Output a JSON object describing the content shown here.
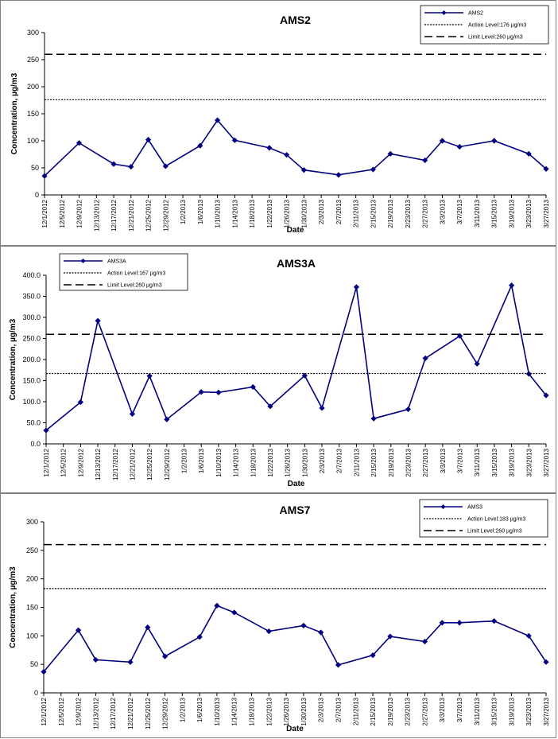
{
  "colors": {
    "series": "#000080",
    "reference": "#000000",
    "frame": "#808080"
  },
  "chart_data": [
    {
      "type": "line",
      "title": "AMS2",
      "xlabel": "Date",
      "ylabel": "Concentration, µg/m3",
      "ylim": [
        0,
        300
      ],
      "yticks": [
        "0",
        "50",
        "100",
        "150",
        "200",
        "250",
        "300"
      ],
      "grid": false,
      "legend_position": "top-right",
      "categories": [
        "12/1/2012",
        "12/5/2012",
        "12/9/2012",
        "12/13/2012",
        "12/17/2012",
        "12/21/2012",
        "12/25/2012",
        "12/29/2012",
        "1/2/2013",
        "1/6/2013",
        "1/10/2013",
        "1/14/2013",
        "1/18/2013",
        "1/22/2013",
        "1/26/2013",
        "1/30/2013",
        "2/3/2013",
        "2/7/2013",
        "2/11/2013",
        "2/15/2013",
        "2/19/2013",
        "2/23/2013",
        "2/27/2013",
        "3/3/2013",
        "3/7/2013",
        "3/11/2013",
        "3/15/2013",
        "3/19/2013",
        "3/23/2013",
        "3/27/2013"
      ],
      "series": [
        {
          "name": "AMS2",
          "style": "line-diamond",
          "x": [
            "12/1/2012",
            "12/9/2012",
            "12/17/2012",
            "12/21/2012",
            "12/25/2012",
            "12/29/2012",
            "1/6/2013",
            "1/10/2013",
            "1/14/2013",
            "1/22/2013",
            "1/26/2013",
            "1/30/2013",
            "2/7/2013",
            "2/15/2013",
            "2/19/2013",
            "2/27/2013",
            "3/3/2013",
            "3/7/2013",
            "3/15/2013",
            "3/23/2013",
            "3/27/2013"
          ],
          "values": [
            35,
            96,
            57,
            52,
            102,
            53,
            91,
            138,
            101,
            87,
            74,
            46,
            37,
            47,
            76,
            64,
            100,
            89,
            100,
            76,
            48
          ]
        },
        {
          "name": "Action Level:176 µg/m3",
          "style": "dotted",
          "value": 176
        },
        {
          "name": "Limit Level:260 µg/m3",
          "style": "dashed",
          "value": 260
        }
      ]
    },
    {
      "type": "line",
      "title": "AMS3A",
      "xlabel": "Date",
      "ylabel": "Concentration, µg/m3",
      "ylim": [
        0,
        400
      ],
      "yticks": [
        "0.0",
        "50.0",
        "100.0",
        "150.0",
        "200.0",
        "250.0",
        "300.0",
        "350.0",
        "400.0"
      ],
      "grid": false,
      "legend_position": "top-left",
      "categories": [
        "12/1/2012",
        "12/5/2012",
        "12/9/2012",
        "12/13/2012",
        "12/17/2012",
        "12/21/2012",
        "12/25/2012",
        "12/29/2012",
        "1/2/2013",
        "1/6/2013",
        "1/10/2013",
        "1/14/2013",
        "1/18/2013",
        "1/22/2013",
        "1/26/2013",
        "1/30/2013",
        "2/3/2013",
        "2/7/2013",
        "2/11/2013",
        "2/15/2013",
        "2/19/2013",
        "2/23/2013",
        "2/27/2013",
        "3/3/2013",
        "3/7/2013",
        "3/11/2013",
        "3/15/2013",
        "3/19/2013",
        "3/23/2013",
        "3/27/2013"
      ],
      "series": [
        {
          "name": "AMS3A",
          "style": "line-diamond",
          "x": [
            "12/1/2012",
            "12/9/2012",
            "12/13/2012",
            "12/21/2012",
            "12/25/2012",
            "12/29/2012",
            "1/6/2013",
            "1/10/2013",
            "1/18/2013",
            "1/22/2013",
            "1/30/2013",
            "2/3/2013",
            "2/11/2013",
            "2/15/2013",
            "2/23/2013",
            "2/27/2013",
            "3/7/2013",
            "3/11/2013",
            "3/19/2013",
            "3/23/2013",
            "3/27/2013"
          ],
          "values": [
            32,
            99,
            292,
            71,
            161,
            58,
            123,
            122,
            135,
            89,
            162,
            85,
            372,
            60,
            82,
            203,
            256,
            190,
            376,
            166,
            115
          ]
        },
        {
          "name": "Action Level:167 µg/m3",
          "style": "dotted",
          "value": 167
        },
        {
          "name": "Limit Level:260 µg/m3",
          "style": "dashed",
          "value": 260
        }
      ]
    },
    {
      "type": "line",
      "title": "AMS7",
      "xlabel": "Date",
      "ylabel": "Concentration, µg/m3",
      "ylim": [
        0,
        300
      ],
      "yticks": [
        "0",
        "50",
        "100",
        "150",
        "200",
        "250",
        "300"
      ],
      "grid": false,
      "legend_position": "top-right",
      "categories": [
        "12/1/2012",
        "12/5/2012",
        "12/9/2012",
        "12/13/2012",
        "12/17/2012",
        "12/21/2012",
        "12/25/2012",
        "12/29/2012",
        "1/2/2013",
        "1/6/2013",
        "1/10/2013",
        "1/14/2013",
        "1/18/2013",
        "1/22/2013",
        "1/26/2013",
        "1/30/2013",
        "2/3/2013",
        "2/7/2013",
        "2/11/2013",
        "2/15/2013",
        "2/19/2013",
        "2/23/2013",
        "2/27/2013",
        "3/3/2013",
        "3/7/2013",
        "3/11/2013",
        "3/15/2013",
        "3/19/2013",
        "3/23/2013",
        "3/27/2013"
      ],
      "series": [
        {
          "name": "AMS3",
          "style": "line-diamond",
          "x": [
            "12/1/2012",
            "12/9/2012",
            "12/13/2012",
            "12/21/2012",
            "12/25/2012",
            "12/29/2012",
            "1/6/2013",
            "1/10/2013",
            "1/14/2013",
            "1/22/2013",
            "1/30/2013",
            "2/3/2013",
            "2/7/2013",
            "2/15/2013",
            "2/19/2013",
            "2/27/2013",
            "3/3/2013",
            "3/7/2013",
            "3/15/2013",
            "3/23/2013",
            "3/27/2013"
          ],
          "values": [
            37,
            110,
            58,
            54,
            115,
            64,
            98,
            153,
            141,
            108,
            118,
            106,
            49,
            66,
            99,
            90,
            123,
            123,
            126,
            100,
            54
          ]
        },
        {
          "name": "Action Level:183 µg/m3",
          "style": "dotted",
          "value": 183
        },
        {
          "name": "Limit Level:260 µg/m3",
          "style": "dashed",
          "value": 260
        }
      ]
    }
  ]
}
